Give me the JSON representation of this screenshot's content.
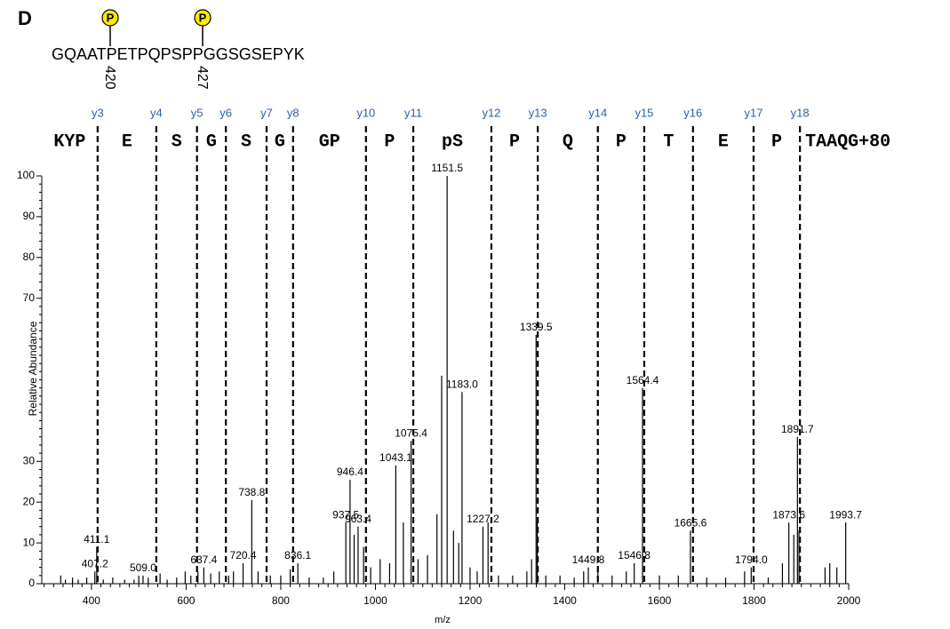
{
  "panel_label": "D",
  "peptide": {
    "sequence": "GQAATPETPQPSPPGGSGSEPYK",
    "sites": [
      {
        "label": "P",
        "number": 420
      },
      {
        "label": "P",
        "number": 427
      }
    ]
  },
  "chart_data": {
    "type": "spectrum",
    "x_label": "m/z",
    "y_label": "Relative Abundance",
    "xlim": [
      295,
      2000
    ],
    "ylim": [
      0,
      100
    ],
    "xticks": [
      400,
      600,
      800,
      1000,
      1200,
      1400,
      1600,
      1800,
      2000
    ],
    "yticks": [
      0,
      10,
      20,
      30,
      {
        "value": 40,
        "label": "0"
      },
      {
        "value": 50,
        "label": "0"
      },
      {
        "value": 60,
        "label": "0"
      },
      70,
      80,
      90,
      100
    ],
    "color": "#000000",
    "x": [
      335,
      345,
      360,
      372,
      390,
      407.2,
      411.1,
      425,
      445,
      470,
      490,
      500,
      509.0,
      520,
      545,
      560,
      580,
      598,
      610,
      625,
      637.4,
      652,
      670,
      690,
      700,
      720.4,
      738.8,
      752,
      778,
      800,
      820,
      836.1,
      860,
      890,
      912,
      937.5,
      946.4,
      955,
      963.4,
      975,
      990,
      1010,
      1030,
      1043.1,
      1059,
      1075.4,
      1090,
      1110,
      1130,
      1140,
      1151.5,
      1165,
      1176,
      1183.0,
      1200,
      1215,
      1227.2,
      1238,
      1260,
      1290,
      1320,
      1330,
      1339.5,
      1342,
      1360,
      1390,
      1420,
      1440,
      1449.8,
      1470,
      1500,
      1530,
      1546.8,
      1564.4,
      1600,
      1640,
      1665.6,
      1700,
      1740,
      1780,
      1794.0,
      1830,
      1860,
      1873.6,
      1884,
      1891.7,
      1895,
      1950,
      1960,
      1975,
      1993.7
    ],
    "values": [
      2,
      1,
      1.5,
      1,
      1.5,
      3,
      9,
      1,
      1.5,
      1,
      1,
      2,
      2,
      1.5,
      2.5,
      1,
      1.5,
      3,
      2,
      3,
      4,
      2.5,
      3,
      2,
      3,
      5,
      20.5,
      3,
      2,
      2,
      3.5,
      5,
      1.5,
      1.5,
      3,
      15,
      25.5,
      12,
      14,
      9,
      4,
      6,
      5,
      29,
      15,
      35,
      6,
      7,
      17,
      51,
      100,
      13,
      10,
      47,
      4,
      3,
      14,
      15,
      2,
      2,
      3,
      6,
      61,
      15,
      2,
      2,
      1.5,
      3,
      4,
      3,
      2,
      3,
      5,
      48,
      2,
      2,
      13,
      1.5,
      1.5,
      3,
      4,
      1.5,
      5,
      15,
      12,
      36,
      13,
      4,
      5,
      4,
      15
    ],
    "x_labels": [
      null,
      null,
      null,
      null,
      null,
      "407.2",
      "411.1",
      null,
      null,
      null,
      null,
      null,
      "509.0",
      null,
      null,
      null,
      null,
      null,
      null,
      null,
      "637.4",
      null,
      null,
      null,
      null,
      "720.4",
      "738.8",
      null,
      null,
      null,
      null,
      "836.1",
      null,
      null,
      null,
      "937.5",
      "946.4",
      null,
      "963.4",
      null,
      null,
      null,
      null,
      "1043.1",
      null,
      "1075.4",
      null,
      null,
      null,
      null,
      "1151.5",
      null,
      null,
      "1183.0",
      null,
      null,
      "1227.2",
      null,
      null,
      null,
      null,
      null,
      "1339.5",
      null,
      null,
      null,
      null,
      null,
      "1449.8",
      null,
      null,
      null,
      "1546.8",
      "1564.4",
      null,
      null,
      "1665.6",
      null,
      null,
      null,
      "1794.0",
      null,
      null,
      "1873.6",
      null,
      "1891.7",
      null,
      null,
      null,
      null,
      "1993.7"
    ],
    "ion_color": "#2e5fa8",
    "ions": [
      {
        "label": "y3",
        "mz": 413
      },
      {
        "label": "y4",
        "mz": 537
      },
      {
        "label": "y5",
        "mz": 623
      },
      {
        "label": "y6",
        "mz": 684
      },
      {
        "label": "y7",
        "mz": 770
      },
      {
        "label": "y8",
        "mz": 826
      },
      {
        "label": "y10",
        "mz": 980
      },
      {
        "label": "y11",
        "mz": 1080
      },
      {
        "label": "y12",
        "mz": 1245
      },
      {
        "label": "y13",
        "mz": 1343
      },
      {
        "label": "y14",
        "mz": 1470
      },
      {
        "label": "y15",
        "mz": 1568
      },
      {
        "label": "y16",
        "mz": 1671
      },
      {
        "label": "y17",
        "mz": 1799
      },
      {
        "label": "y18",
        "mz": 1897
      }
    ],
    "residues": [
      "KYP",
      "E",
      "S",
      "G",
      "S",
      "G",
      "GP",
      "P",
      "pS",
      "P",
      "Q",
      "P",
      "T",
      "E",
      "P",
      "TAAQG+80"
    ]
  }
}
